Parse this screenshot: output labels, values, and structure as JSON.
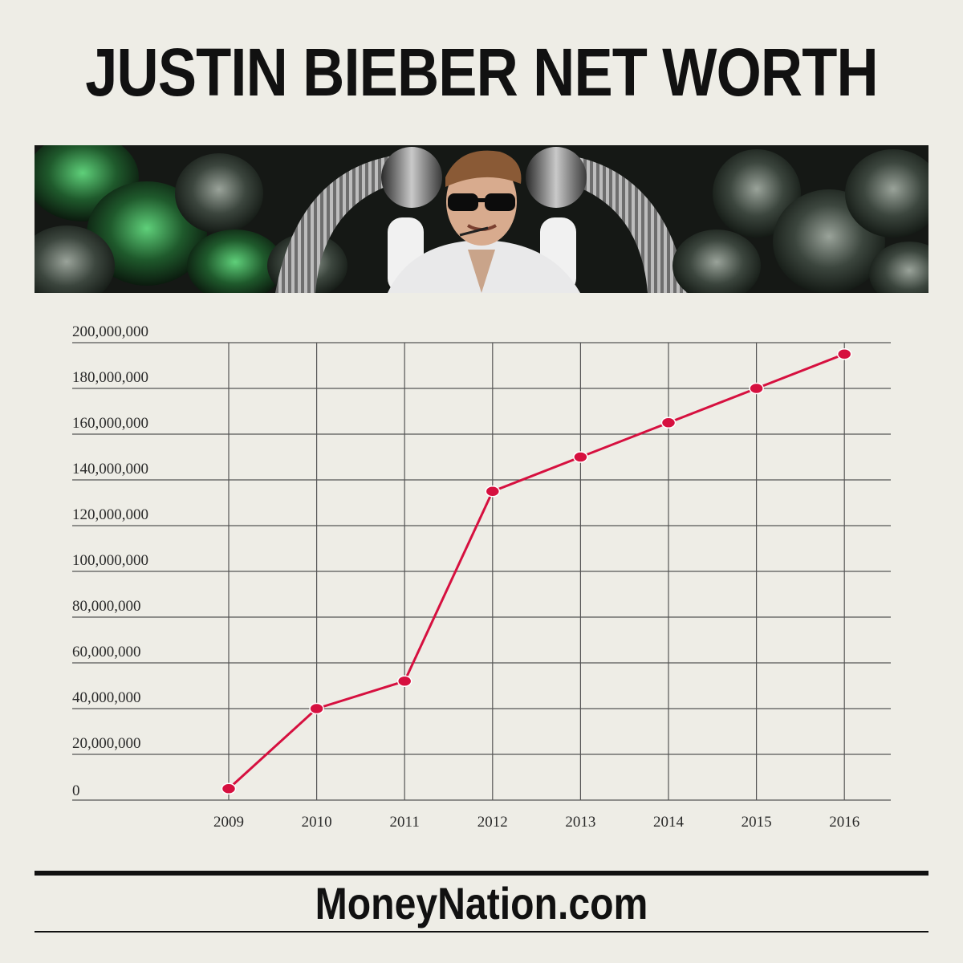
{
  "header": {
    "title": "JUSTIN BIEBER NET WORTH"
  },
  "banner": {
    "description_icon": "concert-photo"
  },
  "footer": {
    "site": "MoneyNation.com"
  },
  "colors": {
    "background": "#eeede6",
    "line": "#d6103f",
    "grid": "#555555",
    "text": "#111111"
  },
  "chart_data": {
    "type": "line",
    "title": "JUSTIN BIEBER NET WORTH",
    "xlabel": "",
    "ylabel": "",
    "categories": [
      "2009",
      "2010",
      "2011",
      "2012",
      "2013",
      "2014",
      "2015",
      "2016"
    ],
    "values": [
      5000000,
      40000000,
      52000000,
      135000000,
      150000000,
      165000000,
      180000000,
      195000000
    ],
    "ylim": [
      0,
      200000000
    ],
    "yticks": [
      "0",
      "20,000,000",
      "40,000,000",
      "60,000,000",
      "80,000,000",
      "100,000,000",
      "120,000,000",
      "140,000,000",
      "160,000,000",
      "180,000,000",
      "200,000,000"
    ],
    "grid": true,
    "legend": "none"
  }
}
